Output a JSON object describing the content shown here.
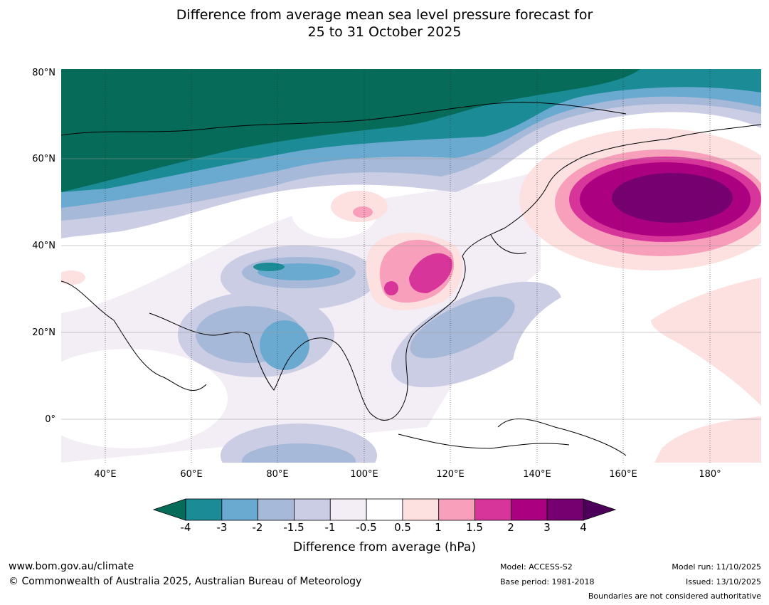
{
  "title": {
    "line1": "Difference from average mean sea level pressure forecast for",
    "line2": "25 to 31 October 2025"
  },
  "axes": {
    "lat_labels": [
      "80°N",
      "60°N",
      "40°N",
      "20°N",
      "0°"
    ],
    "lon_labels": [
      "40°E",
      "60°E",
      "80°E",
      "100°E",
      "120°E",
      "140°E",
      "160°E",
      "180°"
    ]
  },
  "colorbar": {
    "title": "Difference from average (hPa)",
    "ticks": [
      "-4",
      "-3",
      "-2",
      "-1.5",
      "-1",
      "-0.5",
      "0.5",
      "1",
      "1.5",
      "2",
      "3",
      "4"
    ],
    "colors": [
      "#1b8c96",
      "#6aaad1",
      "#a7b9d8",
      "#cacde3",
      "#f3edf5",
      "#ffffff",
      "#fde0e0",
      "#f79fbb",
      "#d8359b",
      "#ab0080",
      "#76006f"
    ],
    "extend_min_color": "#066b58",
    "extend_max_color": "#4d0059"
  },
  "footer": {
    "website": "www.bom.gov.au/climate",
    "copyright": "© Commonwealth of Australia 2025, Australian Bureau of Meteorology",
    "model": "Model: ACCESS-S2",
    "base_period": "Base period: 1981-2018",
    "model_run": "Model run: 11/10/2025",
    "issued": "Issued: 13/10/2025",
    "disclaimer": "Boundaries are not considered authoritative"
  }
}
